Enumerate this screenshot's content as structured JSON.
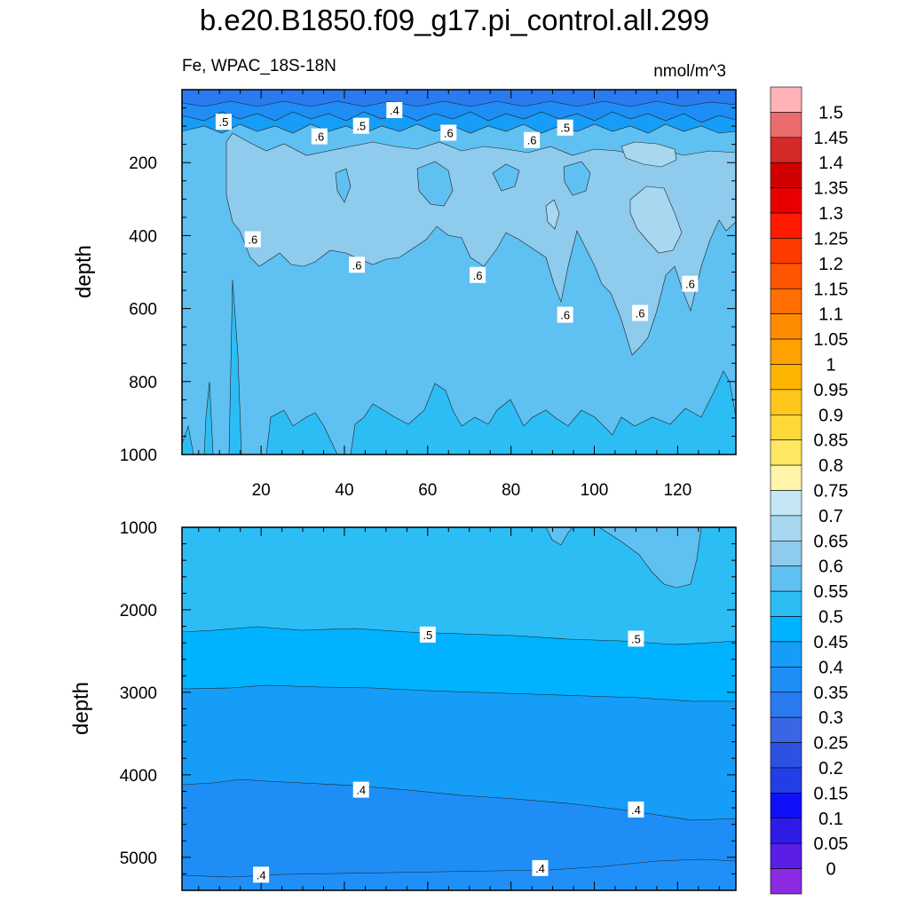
{
  "title": "b.e20.B1850.f09_g17.pi_control.all.299",
  "chart_data": [
    {
      "type": "heatmap",
      "panel": "upper",
      "variable": "Fe, WPAC_18S-18N",
      "units": "nmol/m^3",
      "xlabel": "",
      "ylabel": "depth",
      "xlim": [
        1,
        134
      ],
      "ylim": [
        1000,
        0
      ],
      "xticks": [
        20,
        40,
        60,
        80,
        100,
        120
      ],
      "yticks": [
        200,
        400,
        600,
        800,
        1000
      ],
      "contour_labels": [
        {
          "text": ".5",
          "x": 11,
          "y": 88
        },
        {
          "text": ".4",
          "x": 52,
          "y": 56
        },
        {
          "text": ".5",
          "x": 44,
          "y": 99
        },
        {
          "text": ".6",
          "x": 34,
          "y": 128
        },
        {
          "text": ".6",
          "x": 65,
          "y": 118
        },
        {
          "text": ".6",
          "x": 85,
          "y": 138
        },
        {
          "text": ".5",
          "x": 93,
          "y": 104
        },
        {
          "text": ".6",
          "x": 18,
          "y": 410
        },
        {
          "text": ".6",
          "x": 43,
          "y": 480
        },
        {
          "text": ".6",
          "x": 72,
          "y": 508
        },
        {
          "text": ".6",
          "x": 93,
          "y": 617
        },
        {
          "text": ".6",
          "x": 111,
          "y": 612
        },
        {
          "text": ".6",
          "x": 123,
          "y": 532
        }
      ]
    },
    {
      "type": "heatmap",
      "panel": "lower",
      "xlabel": "",
      "ylabel": "depth",
      "xlim": [
        1,
        134
      ],
      "ylim": [
        5400,
        1000
      ],
      "yticks": [
        1000,
        2000,
        3000,
        4000,
        5000
      ],
      "contour_labels": [
        {
          "text": ".5",
          "x": 60,
          "y": 2300
        },
        {
          "text": ".5",
          "x": 110,
          "y": 2350
        },
        {
          "text": ".4",
          "x": 44,
          "y": 4180
        },
        {
          "text": ".4",
          "x": 110,
          "y": 4420
        },
        {
          "text": ".4",
          "x": 20,
          "y": 5210
        },
        {
          "text": ".4",
          "x": 87,
          "y": 5130
        }
      ]
    }
  ],
  "colorbar": {
    "labels": [
      "1.5",
      "1.45",
      "1.4",
      "1.35",
      "1.3",
      "1.25",
      "1.2",
      "1.15",
      "1.1",
      "1.05",
      "1",
      "0.95",
      "0.9",
      "0.85",
      "0.8",
      "0.75",
      "0.7",
      "0.65",
      "0.6",
      "0.55",
      "0.5",
      "0.45",
      "0.4",
      "0.35",
      "0.3",
      "0.25",
      "0.2",
      "0.15",
      "0.1",
      "0.05",
      "0"
    ],
    "colors_top_to_bottom": [
      "#ffb3b8",
      "#eb6c6c",
      "#d42a2a",
      "#d10000",
      "#e80000",
      "#ff1a00",
      "#ff3a00",
      "#ff5500",
      "#ff6e00",
      "#ff8c00",
      "#ffa100",
      "#ffb500",
      "#ffc71a",
      "#ffd93a",
      "#ffe763",
      "#fff5a8",
      "#c4e6f5",
      "#a7d8f0",
      "#8ecbed",
      "#5fc0f2",
      "#2dbdf5",
      "#00b2ff",
      "#169df7",
      "#1e8ef6",
      "#2a7af0",
      "#3a66e6",
      "#2d52e2",
      "#223ee6",
      "#1010f8",
      "#2e1ce6",
      "#5a1ee6",
      "#8a2be2"
    ]
  }
}
